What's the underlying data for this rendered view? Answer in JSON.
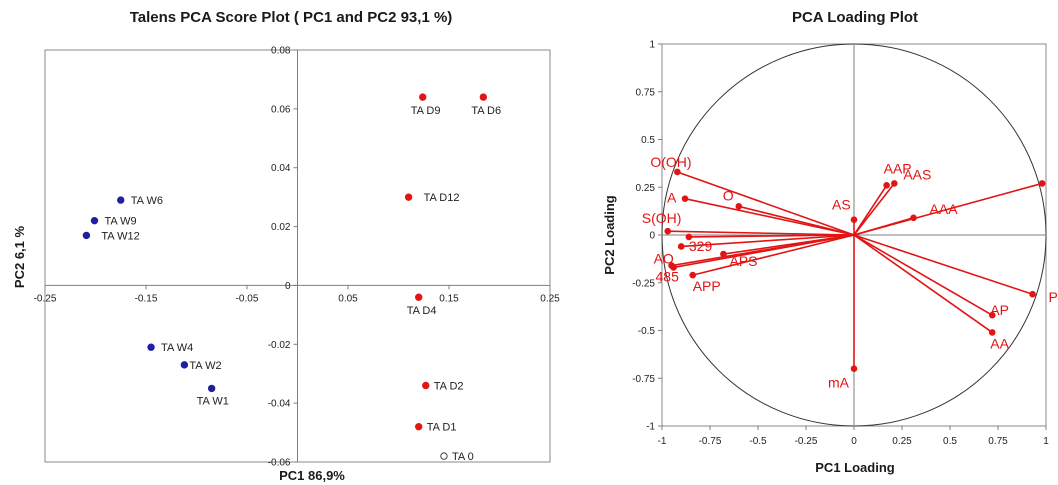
{
  "colors": {
    "red": "#e21414",
    "blue": "#1f1fa3",
    "axis": "#7f7f7f",
    "frame": "#888888"
  },
  "chart_data": [
    {
      "type": "scatter",
      "title": "Talens PCA  Score Plot ( PC1 and PC2 93,1 %)",
      "xlabel": "PC1 86,9%",
      "ylabel": "PC2 6,1 %",
      "xlim": [
        -0.25,
        0.25
      ],
      "ylim": [
        -0.06,
        0.08
      ],
      "xticks": [
        -0.25,
        -0.15,
        -0.05,
        0.05,
        0.15,
        0.25
      ],
      "xtick_labels": [
        "-0.25",
        "-0.15",
        "-0.05",
        "0.05",
        "0.15",
        "0.25"
      ],
      "yticks": [
        -0.06,
        -0.04,
        -0.02,
        0,
        0.02,
        0.04,
        0.06,
        0.08
      ],
      "ytick_labels": [
        "-0.06",
        "-0.04",
        "-0.02",
        "0",
        "0.02",
        "0.04",
        "0.06",
        "0.08"
      ],
      "grid": false,
      "points": [
        {
          "label": "TA D9",
          "x": 0.124,
          "y": 0.064,
          "color": "red",
          "filled": true
        },
        {
          "label": "TA D6",
          "x": 0.184,
          "y": 0.064,
          "color": "red",
          "filled": true
        },
        {
          "label": "TA D12",
          "x": 0.11,
          "y": 0.03,
          "color": "red",
          "filled": true
        },
        {
          "label": "TA D4",
          "x": 0.12,
          "y": -0.004,
          "color": "red",
          "filled": true
        },
        {
          "label": "TA D2",
          "x": 0.127,
          "y": -0.034,
          "color": "red",
          "filled": true
        },
        {
          "label": "TA D1",
          "x": 0.12,
          "y": -0.048,
          "color": "red",
          "filled": true
        },
        {
          "label": "TA 0",
          "x": 0.145,
          "y": -0.058,
          "color": "red",
          "filled": false
        },
        {
          "label": "TA W6",
          "x": -0.175,
          "y": 0.029,
          "color": "blue",
          "filled": true
        },
        {
          "label": "TA W9",
          "x": -0.201,
          "y": 0.022,
          "color": "blue",
          "filled": true
        },
        {
          "label": "TA W12",
          "x": -0.209,
          "y": 0.017,
          "color": "blue",
          "filled": true
        },
        {
          "label": "TA W4",
          "x": -0.145,
          "y": -0.021,
          "color": "blue",
          "filled": true
        },
        {
          "label": "TA W2",
          "x": -0.112,
          "y": -0.027,
          "color": "blue",
          "filled": true
        },
        {
          "label": "TA W1",
          "x": -0.085,
          "y": -0.035,
          "color": "blue",
          "filled": true
        }
      ]
    },
    {
      "type": "scatter",
      "title": "PCA Loading Plot",
      "xlabel": "PC1 Loading",
      "ylabel": "PC2 Loading",
      "xlim": [
        -1,
        1
      ],
      "ylim": [
        -1,
        1
      ],
      "xticks": [
        -1,
        -0.75,
        -0.5,
        -0.25,
        0,
        0.25,
        0.5,
        0.75,
        1
      ],
      "xtick_labels": [
        "-1",
        "-0.75",
        "-0.5",
        "-0.25",
        "0",
        "0.25",
        "0.5",
        "0.75",
        "1"
      ],
      "yticks": [
        -1,
        -0.75,
        -0.5,
        -0.25,
        0,
        0.25,
        0.5,
        0.75,
        1
      ],
      "yticks_labels_note": "",
      "ytick_labels": [
        "-1",
        "-0.75",
        "-0.5",
        "-0.25",
        "0",
        "0.25",
        "0.5",
        "0.75",
        "1"
      ],
      "unit_circle": true,
      "grid": false,
      "points": [
        {
          "label": "O(OH)",
          "x": -0.92,
          "y": 0.33
        },
        {
          "label": "A",
          "x": -0.88,
          "y": 0.19
        },
        {
          "label": "O",
          "x": -0.6,
          "y": 0.15
        },
        {
          "label": "S(OH)",
          "x": -0.97,
          "y": 0.02
        },
        {
          "label": "329",
          "x": -0.86,
          "y": -0.01
        },
        {
          "label": "",
          "x": -0.9,
          "y": -0.06
        },
        {
          "label": "APS",
          "x": -0.68,
          "y": -0.1
        },
        {
          "label": "AO",
          "x": -0.95,
          "y": -0.16
        },
        {
          "label": "485",
          "x": -0.94,
          "y": -0.17
        },
        {
          "label": "APP",
          "x": -0.84,
          "y": -0.21
        },
        {
          "label": "AS",
          "x": 0.0,
          "y": 0.08
        },
        {
          "label": "AAP",
          "x": 0.17,
          "y": 0.26
        },
        {
          "label": "AAS",
          "x": 0.21,
          "y": 0.27
        },
        {
          "label": "AAA",
          "x": 0.31,
          "y": 0.09
        },
        {
          "label": "",
          "x": 0.98,
          "y": 0.27
        },
        {
          "label": "P",
          "x": 0.93,
          "y": -0.31
        },
        {
          "label": "AP",
          "x": 0.72,
          "y": -0.42
        },
        {
          "label": "AA",
          "x": 0.72,
          "y": -0.51
        },
        {
          "label": "mA",
          "x": 0.0,
          "y": -0.7
        }
      ]
    }
  ]
}
